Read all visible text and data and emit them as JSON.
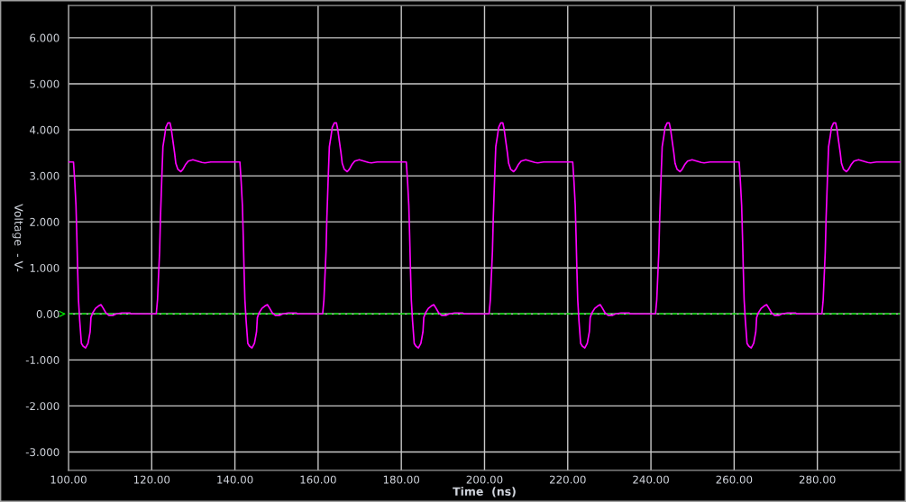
{
  "chart_data": {
    "type": "line",
    "xlabel": "Time  (ns)",
    "ylabel": "Voltage  - V-",
    "x": [
      100.0,
      101.2,
      101.5,
      101.8,
      102.0,
      102.2,
      102.4,
      102.7,
      103.1,
      103.5,
      104.1,
      104.7,
      105.2,
      105.4,
      105.8,
      106.5,
      107.2,
      107.8,
      108.3,
      109.0,
      109.7,
      110.8,
      111.5,
      112.8,
      114.8,
      115.0,
      121.1,
      121.4,
      121.6,
      121.9,
      122.1,
      122.4,
      122.7,
      123.1,
      123.4,
      123.9,
      124.4,
      124.7,
      125.1,
      125.5,
      125.8,
      126.3,
      127.0,
      127.5,
      128.1,
      128.8,
      129.9,
      131.0,
      132.1,
      132.8,
      134.2,
      141.2,
      141.5,
      141.8,
      142.0,
      142.2,
      142.4,
      142.7,
      143.1,
      143.5,
      144.1,
      144.7,
      145.2,
      145.4,
      145.8,
      146.5,
      147.2,
      147.8,
      148.3,
      149.0,
      149.7,
      150.8,
      151.5,
      152.8,
      154.8,
      155.0,
      161.1,
      161.4,
      161.6,
      161.9,
      162.1,
      162.4,
      162.7,
      163.1,
      163.4,
      163.9,
      164.4,
      164.7,
      165.1,
      165.5,
      165.8,
      166.3,
      167.0,
      167.5,
      168.1,
      168.8,
      169.9,
      171.0,
      172.1,
      172.8,
      174.2,
      181.2,
      181.5,
      181.8,
      182.0,
      182.2,
      182.4,
      182.7,
      183.1,
      183.5,
      184.1,
      184.7,
      185.2,
      185.4,
      185.8,
      186.5,
      187.2,
      187.8,
      188.3,
      189.0,
      189.7,
      190.8,
      191.5,
      192.8,
      194.8,
      195.0,
      201.1,
      201.4,
      201.6,
      201.9,
      202.1,
      202.4,
      202.7,
      203.1,
      203.4,
      203.9,
      204.4,
      204.7,
      205.1,
      205.5,
      205.8,
      206.3,
      207.0,
      207.5,
      208.1,
      208.8,
      209.9,
      211.0,
      212.1,
      212.8,
      214.2,
      221.2,
      221.5,
      221.8,
      222.0,
      222.2,
      222.4,
      222.7,
      223.1,
      223.5,
      224.1,
      224.7,
      225.2,
      225.4,
      225.8,
      226.5,
      227.2,
      227.8,
      228.3,
      229.0,
      229.7,
      230.8,
      231.5,
      232.8,
      234.8,
      235.0,
      241.1,
      241.4,
      241.6,
      241.9,
      242.1,
      242.4,
      242.7,
      243.1,
      243.4,
      243.9,
      244.4,
      244.7,
      245.1,
      245.5,
      245.8,
      246.3,
      247.0,
      247.5,
      248.1,
      248.8,
      249.9,
      251.0,
      252.1,
      252.8,
      254.2,
      261.2,
      261.5,
      261.8,
      262.0,
      262.2,
      262.4,
      262.7,
      263.1,
      263.5,
      264.1,
      264.7,
      265.2,
      265.4,
      265.8,
      266.5,
      267.2,
      267.8,
      268.3,
      269.0,
      269.7,
      270.8,
      271.5,
      272.8,
      274.8,
      275.0,
      281.1,
      281.4,
      281.6,
      281.9,
      282.1,
      282.4,
      282.7,
      283.1,
      283.4,
      283.9,
      284.4,
      284.7,
      285.1,
      285.5,
      285.8,
      286.3,
      287.0,
      287.5,
      288.1,
      288.8,
      289.9,
      291.0,
      292.1,
      292.8,
      294.2,
      300.0
    ],
    "series": [
      {
        "color": "#ff00ff",
        "values": [
          3.3,
          3.3,
          2.88,
          2.36,
          1.71,
          0.96,
          0.31,
          -0.15,
          -0.64,
          -0.7,
          -0.74,
          -0.64,
          -0.39,
          -0.08,
          0.02,
          0.12,
          0.17,
          0.2,
          0.13,
          0.02,
          -0.03,
          -0.03,
          0.0,
          0.02,
          0.02,
          0.0,
          0.0,
          0.31,
          0.73,
          1.35,
          2.07,
          2.88,
          3.63,
          3.86,
          4.05,
          4.15,
          4.15,
          4.02,
          3.76,
          3.5,
          3.27,
          3.14,
          3.09,
          3.14,
          3.24,
          3.32,
          3.35,
          3.32,
          3.29,
          3.28,
          3.3,
          3.3,
          2.88,
          2.36,
          1.71,
          0.96,
          0.31,
          -0.15,
          -0.64,
          -0.7,
          -0.74,
          -0.64,
          -0.39,
          -0.08,
          0.02,
          0.12,
          0.17,
          0.2,
          0.13,
          0.02,
          -0.03,
          -0.03,
          0.0,
          0.02,
          0.02,
          0.0,
          0.0,
          0.31,
          0.73,
          1.35,
          2.07,
          2.88,
          3.63,
          3.86,
          4.05,
          4.15,
          4.15,
          4.02,
          3.76,
          3.5,
          3.27,
          3.14,
          3.09,
          3.14,
          3.24,
          3.32,
          3.35,
          3.32,
          3.29,
          3.28,
          3.3,
          3.3,
          2.88,
          2.36,
          1.71,
          0.96,
          0.31,
          -0.15,
          -0.64,
          -0.7,
          -0.74,
          -0.64,
          -0.39,
          -0.08,
          0.02,
          0.12,
          0.17,
          0.2,
          0.13,
          0.02,
          -0.03,
          -0.03,
          0.0,
          0.02,
          0.02,
          0.0,
          0.0,
          0.31,
          0.73,
          1.35,
          2.07,
          2.88,
          3.63,
          3.86,
          4.05,
          4.15,
          4.15,
          4.02,
          3.76,
          3.5,
          3.27,
          3.14,
          3.09,
          3.14,
          3.24,
          3.32,
          3.35,
          3.32,
          3.29,
          3.28,
          3.3,
          3.3,
          2.88,
          2.36,
          1.71,
          0.96,
          0.31,
          -0.15,
          -0.64,
          -0.7,
          -0.74,
          -0.64,
          -0.39,
          -0.08,
          0.02,
          0.12,
          0.17,
          0.2,
          0.13,
          0.02,
          -0.03,
          -0.03,
          0.0,
          0.02,
          0.02,
          0.0,
          0.0,
          0.31,
          0.73,
          1.35,
          2.07,
          2.88,
          3.63,
          3.86,
          4.05,
          4.15,
          4.15,
          4.02,
          3.76,
          3.5,
          3.27,
          3.14,
          3.09,
          3.14,
          3.24,
          3.32,
          3.35,
          3.32,
          3.29,
          3.28,
          3.3,
          3.3,
          2.88,
          2.36,
          1.71,
          0.96,
          0.31,
          -0.15,
          -0.64,
          -0.7,
          -0.74,
          -0.64,
          -0.39,
          -0.08,
          0.02,
          0.12,
          0.17,
          0.2,
          0.13,
          0.02,
          -0.03,
          -0.03,
          0.0,
          0.02,
          0.02,
          0.0,
          0.0,
          0.31,
          0.73,
          1.35,
          2.07,
          2.88,
          3.63,
          3.86,
          4.05,
          4.15,
          4.15,
          4.02,
          3.76,
          3.5,
          3.27,
          3.14,
          3.09,
          3.14,
          3.24,
          3.32,
          3.35,
          3.32,
          3.29,
          3.28,
          3.3,
          3.3
        ]
      }
    ],
    "xlim": [
      100,
      300
    ],
    "ylim": [
      -3.4,
      6.7
    ],
    "xticks": [
      {
        "value": 100,
        "label": "100.00"
      },
      {
        "value": 120,
        "label": "120.00"
      },
      {
        "value": 140,
        "label": "140.00"
      },
      {
        "value": 160,
        "label": "160.00"
      },
      {
        "value": 180,
        "label": "180.00"
      },
      {
        "value": 200,
        "label": "200.00"
      },
      {
        "value": 220,
        "label": "220.00"
      },
      {
        "value": 240,
        "label": "240.00"
      },
      {
        "value": 260,
        "label": "260.00"
      },
      {
        "value": 280,
        "label": "280.00"
      }
    ],
    "yticks": [
      {
        "value": -3,
        "label": "-3.000"
      },
      {
        "value": -2,
        "label": "-2.000"
      },
      {
        "value": -1,
        "label": "-1.000"
      },
      {
        "value": 0,
        "label": "0.00"
      },
      {
        "value": 1,
        "label": "1.000"
      },
      {
        "value": 2,
        "label": "2.000"
      },
      {
        "value": 3,
        "label": "3.000"
      },
      {
        "value": 4,
        "label": "4.000"
      },
      {
        "value": 5,
        "label": "5.000"
      },
      {
        "value": 6,
        "label": "6.000"
      }
    ],
    "grid": true,
    "line_style": "solid",
    "ref_lines": [
      {
        "axis": "y",
        "value": 0,
        "color": "#00e000",
        "line_style": "dashed"
      }
    ]
  }
}
